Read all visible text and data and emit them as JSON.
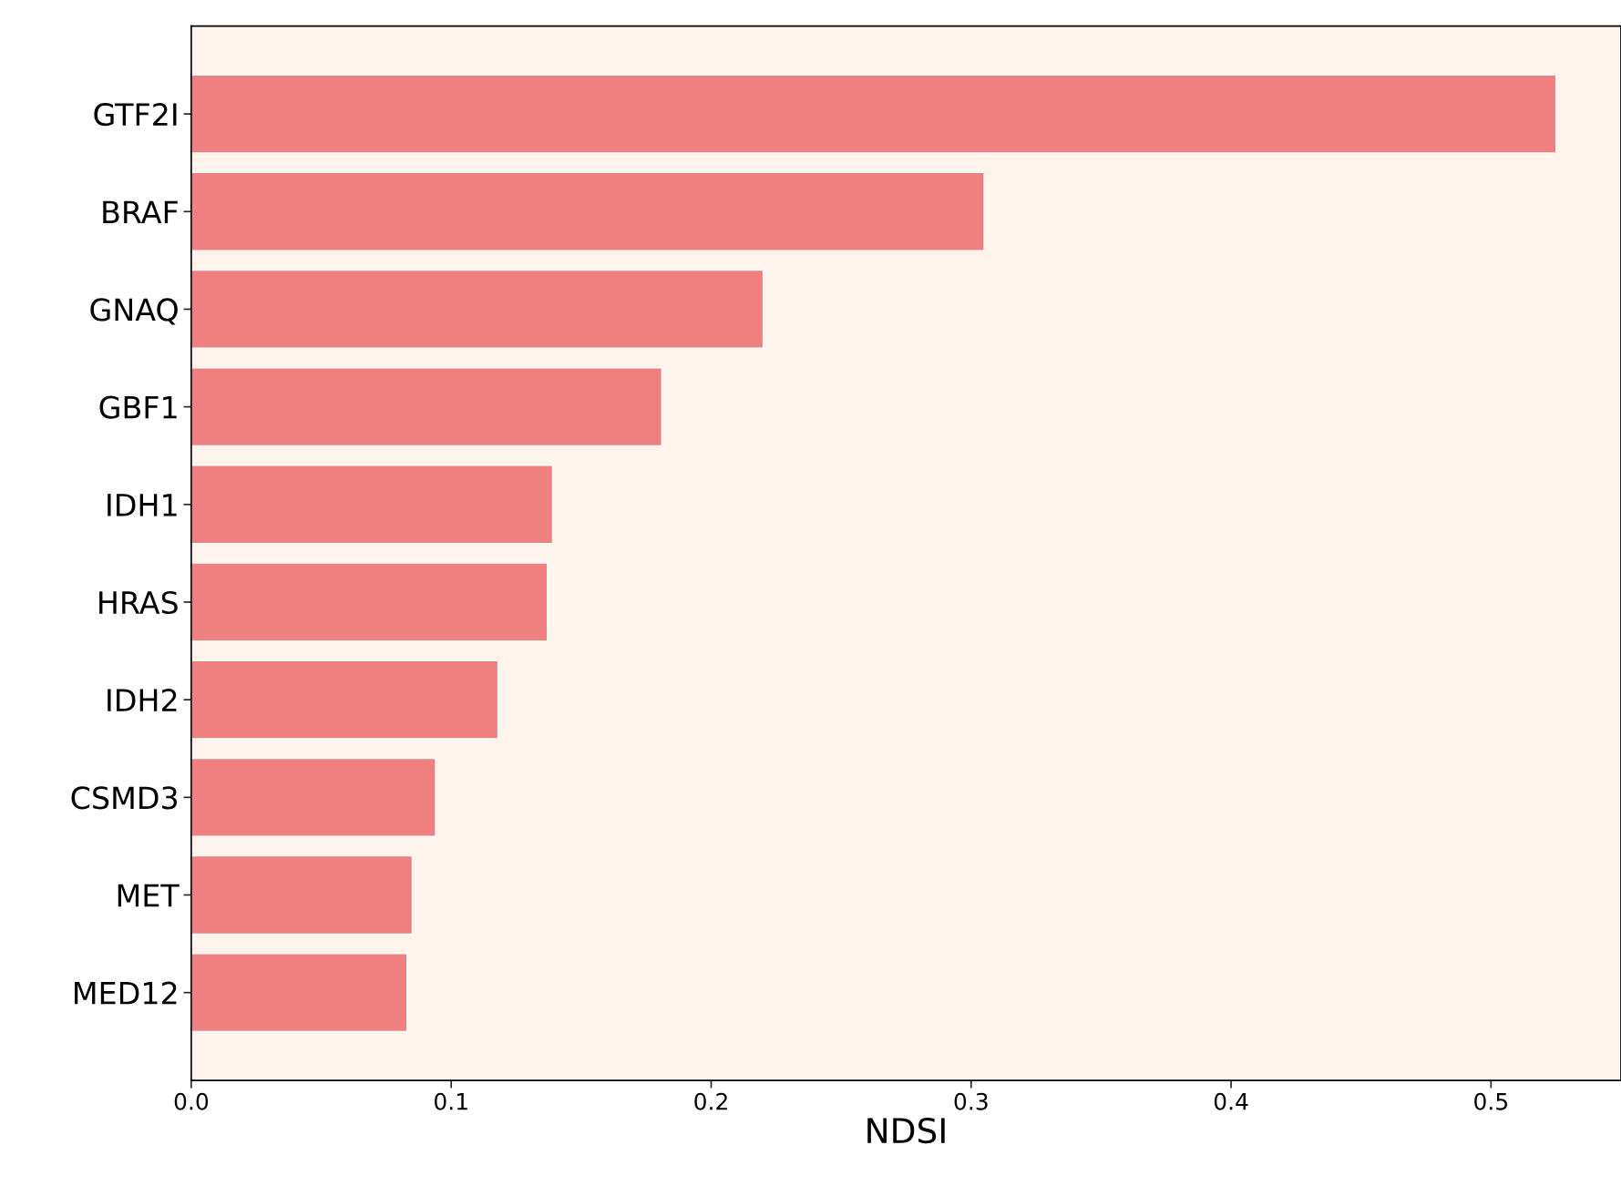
{
  "chart_data": {
    "type": "bar",
    "orientation": "horizontal",
    "xlabel": "NDSI",
    "categories": [
      "GTF2I",
      "BRAF",
      "GNAQ",
      "GBF1",
      "IDH1",
      "HRAS",
      "IDH2",
      "CSMD3",
      "MET",
      "MED12"
    ],
    "values": [
      0.525,
      0.305,
      0.22,
      0.181,
      0.139,
      0.137,
      0.118,
      0.094,
      0.085,
      0.083
    ],
    "color": "#f08080",
    "xlim": [
      0,
      0.55
    ],
    "xticks": [
      {
        "value": 0,
        "label": "0.0"
      },
      0.1,
      0.2,
      0.3,
      0.4,
      0.5
    ],
    "grid": false
  }
}
